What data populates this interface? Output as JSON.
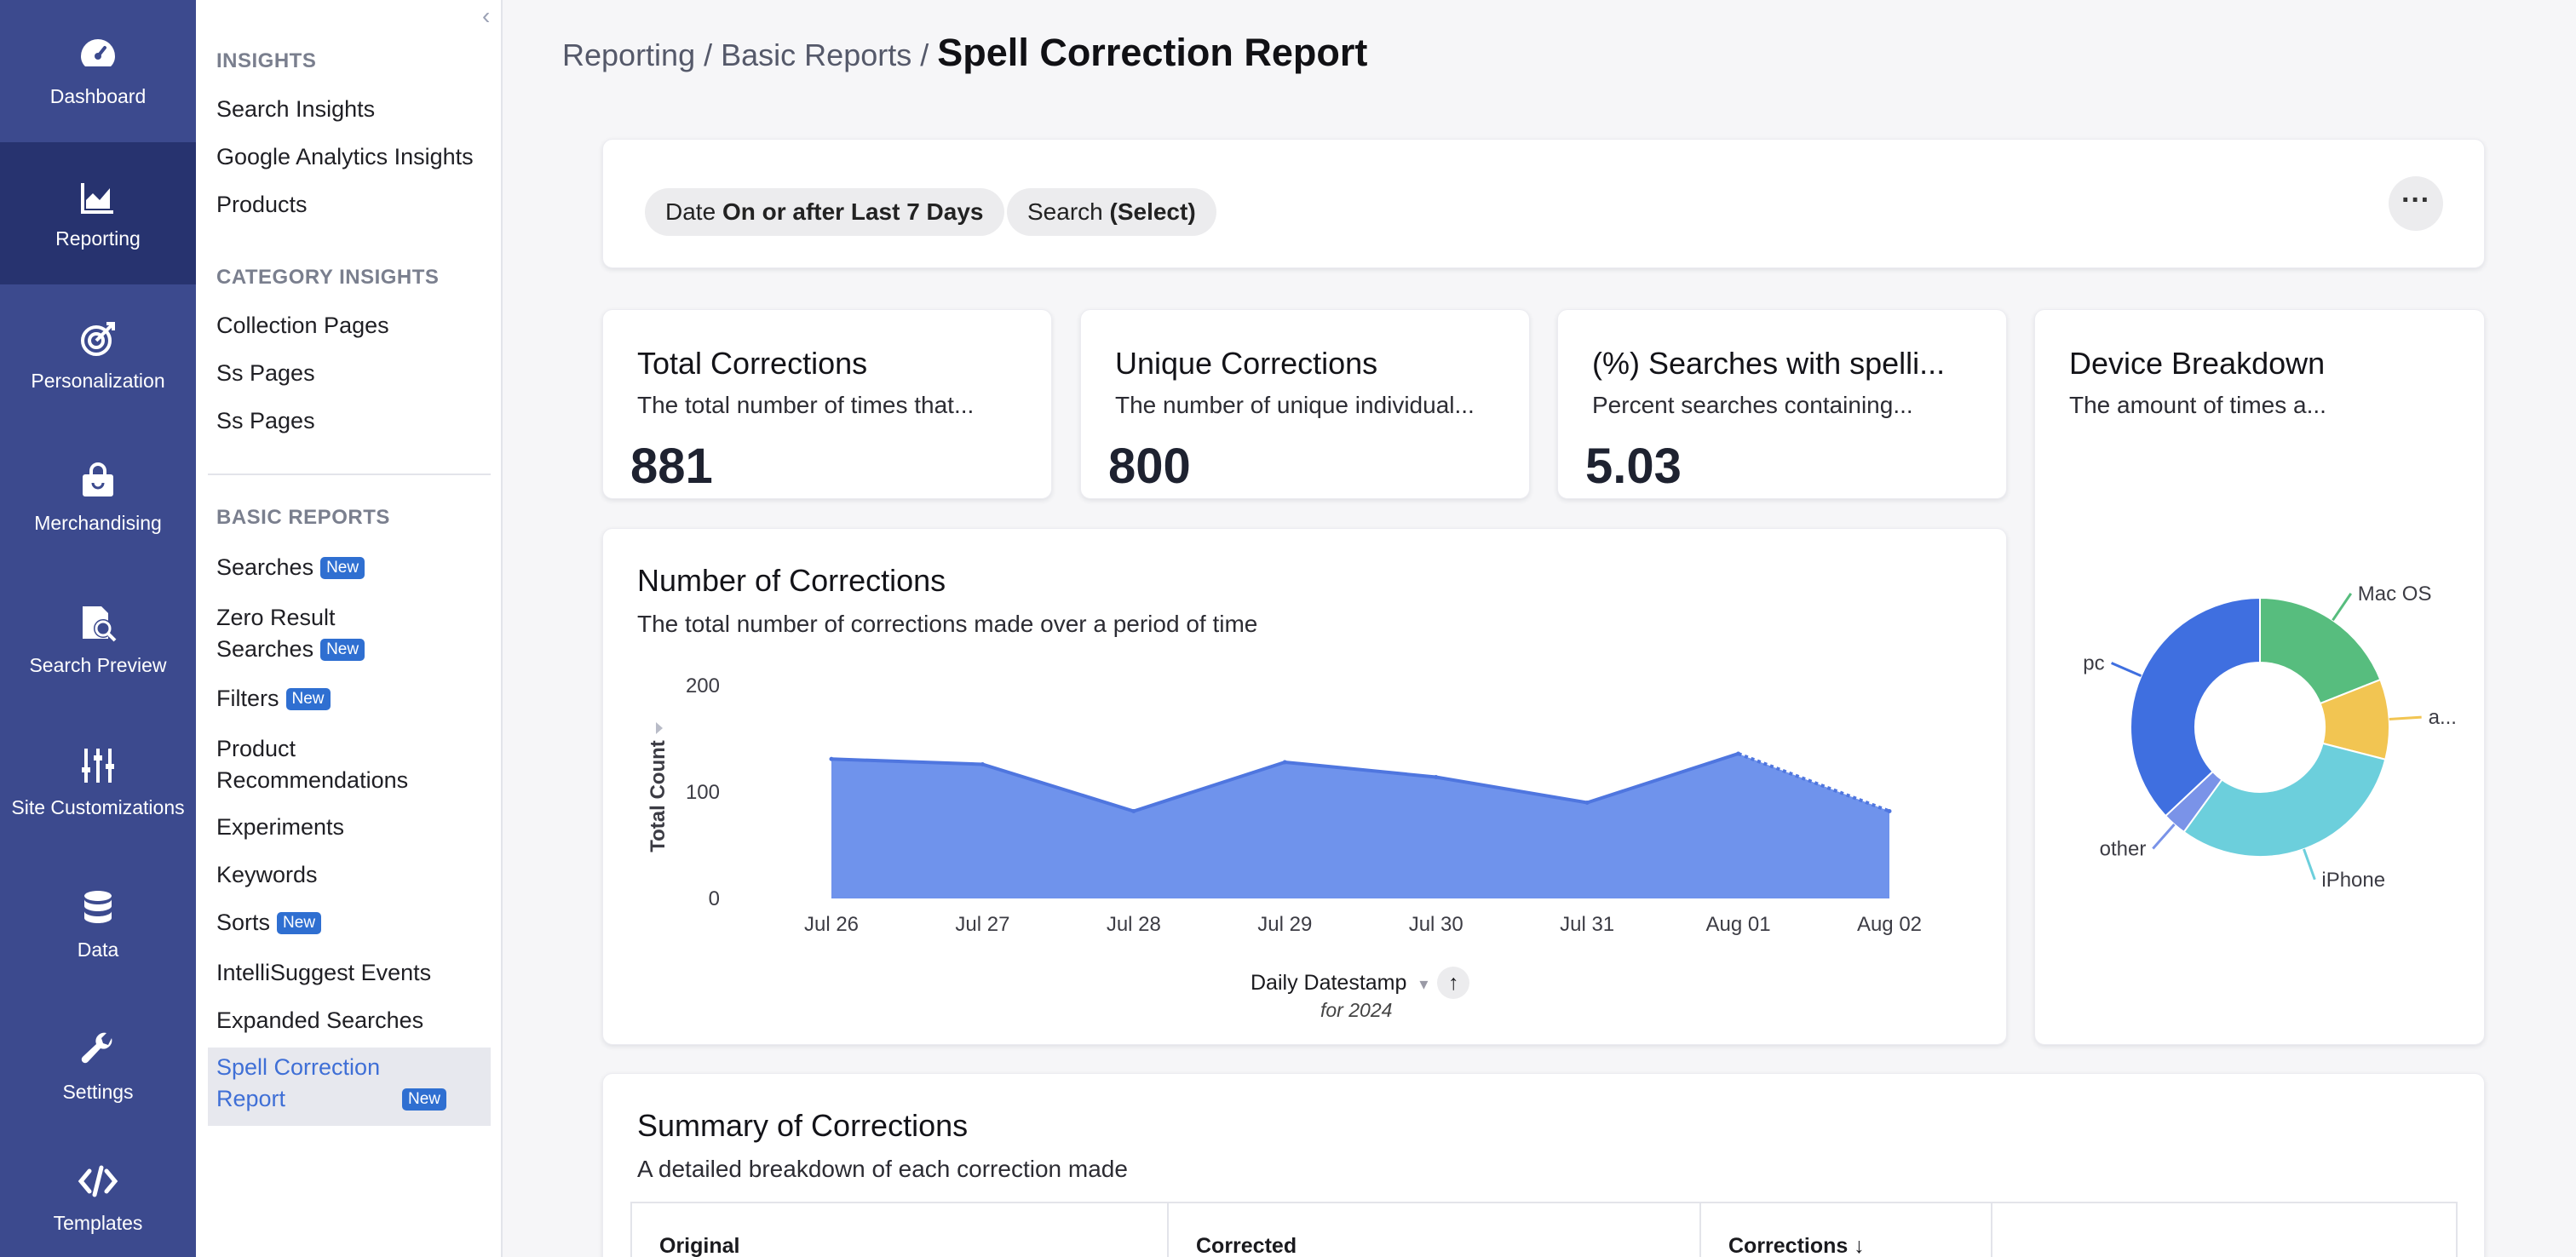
{
  "rail": {
    "items": [
      {
        "label": "Dashboard",
        "icon": "dashboard-gauge-icon"
      },
      {
        "label": "Reporting",
        "icon": "chart-icon"
      },
      {
        "label": "Personalization",
        "icon": "target-icon"
      },
      {
        "label": "Merchandising",
        "icon": "shopping-bag-icon"
      },
      {
        "label": "Search Preview",
        "icon": "search-document-icon"
      },
      {
        "label": "Site Customizations",
        "icon": "sliders-icon"
      },
      {
        "label": "Data",
        "icon": "database-icon"
      },
      {
        "label": "Settings",
        "icon": "wrench-icon"
      },
      {
        "label": "Templates",
        "icon": "code-icon"
      }
    ]
  },
  "nav": {
    "sections": [
      {
        "heading": "INSIGHTS",
        "items": [
          "Search Insights",
          "Google Analytics Insights",
          "Products"
        ]
      },
      {
        "heading": "CATEGORY INSIGHTS",
        "items": [
          "Collection Pages",
          "Ss Pages",
          "Ss Pages"
        ]
      },
      {
        "heading": "BASIC REPORTS",
        "items": [
          "Searches",
          "Zero Result Searches",
          "Filters",
          "Product Recommendations",
          "Experiments",
          "Keywords",
          "Sorts",
          "IntelliSuggest Events",
          "Expanded Searches",
          "Spell Correction Report"
        ]
      }
    ],
    "badge": "New",
    "collapse_glyph": "‹"
  },
  "breadcrumb": {
    "part1": "Reporting",
    "sep": "/",
    "part2": "Basic Reports",
    "current": "Spell Correction Report"
  },
  "filters": {
    "date_label": "Date",
    "date_value": "On or after Last 7 Days",
    "search_label": "Search",
    "search_value": "(Select)",
    "more": "···"
  },
  "kpis": [
    {
      "title": "Total Corrections",
      "subtitle": "The total number of times that...",
      "value": "881"
    },
    {
      "title": "Unique Corrections",
      "subtitle": "The number of unique individual...",
      "value": "800"
    },
    {
      "title": "(%) Searches with spelli...",
      "subtitle": "Percent searches containing...",
      "value": "5.03"
    }
  ],
  "device": {
    "title": "Device Breakdown",
    "subtitle": "The amount of times a..."
  },
  "corrections_chart": {
    "title": "Number of Corrections",
    "subtitle": "The total number of corrections made over a period of time",
    "footer_label": "Daily Datestamp",
    "footer_sub": "for 2024"
  },
  "summary": {
    "title": "Summary of Corrections",
    "subtitle": "A detailed breakdown of each correction made",
    "columns": [
      "Original",
      "Corrected",
      "Corrections ↓",
      ""
    ]
  },
  "colors": {
    "rail": "#3c4a8e",
    "rail_active": "#27336f",
    "area_fill": "#6f93ec",
    "area_line": "#4f76df",
    "accent_link": "#3f6fd6"
  },
  "chart_data": [
    {
      "type": "area",
      "x": [
        "Jul 26",
        "Jul 27",
        "Jul 28",
        "Jul 29",
        "Jul 30",
        "Jul 31",
        "Aug 01",
        "Aug 02"
      ],
      "series": [
        {
          "values": [
            131,
            126,
            82,
            128,
            114,
            90,
            136,
            82
          ]
        }
      ],
      "ylabel": "Total Count",
      "xlabel": "Daily Datestamp",
      "yticks": [
        0,
        100,
        200
      ],
      "ylim": [
        0,
        200
      ],
      "grid": false
    },
    {
      "type": "pie",
      "donut": true,
      "labels": [
        "Mac OS",
        "a...",
        "iPhone",
        "other",
        "pc"
      ],
      "values": [
        19,
        10,
        31,
        3,
        37
      ],
      "colors": [
        "#57bd7e",
        "#f2c552",
        "#6ccfdc",
        "#7a93e8",
        "#3f6fe0"
      ]
    }
  ]
}
